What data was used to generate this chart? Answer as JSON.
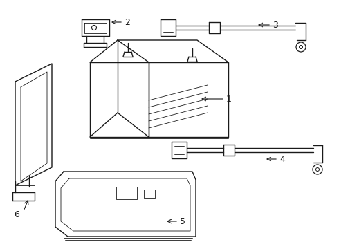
{
  "background_color": "#ffffff",
  "line_color": "#1a1a1a",
  "lw": 1.0,
  "lw_thin": 0.6,
  "label_fs": 9
}
